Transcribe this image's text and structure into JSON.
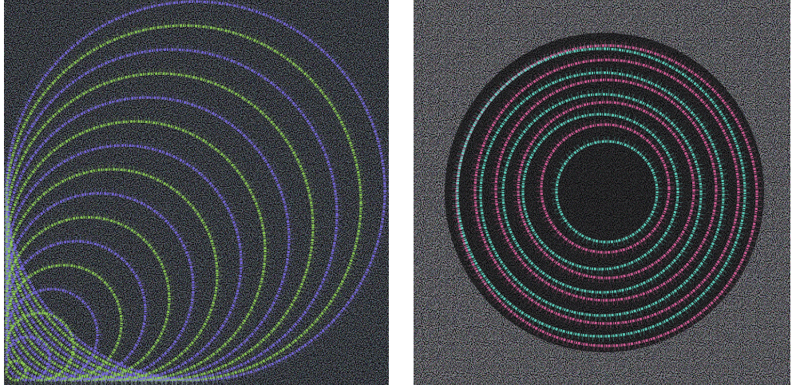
{
  "panels": [
    {
      "colors": [
        "#8fcf55",
        "#7a6ae6"
      ]
    },
    {
      "colors": [
        "#e0629f",
        "#62dcc8"
      ]
    }
  ]
}
